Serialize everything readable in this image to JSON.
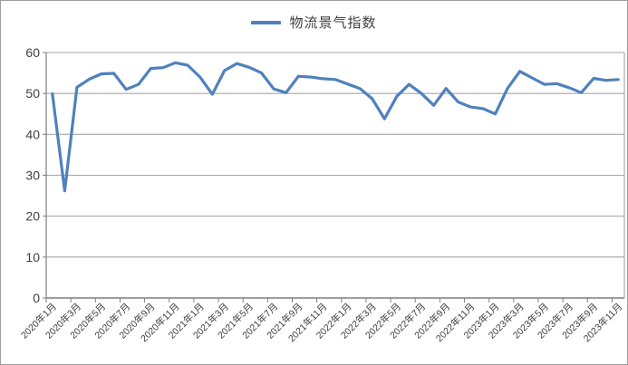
{
  "colors": {
    "line": "#4f81bd",
    "grid": "#a6a6a6",
    "axis": "#7f7f7f",
    "text": "#3f3f3f",
    "plot_border": "#a6a6a6",
    "background": "#ffffff"
  },
  "chart_data": {
    "type": "line",
    "title": "物流景气指数",
    "legend": {
      "label": "物流景气指数",
      "position": "top"
    },
    "grid": true,
    "ylim": [
      0,
      60
    ],
    "y_ticks": [
      0,
      10,
      20,
      30,
      40,
      50,
      60
    ],
    "x_label_interval": 2,
    "x_tick_labels": [
      "2020年1月",
      "2020年3月",
      "2020年5月",
      "2020年7月",
      "2020年9月",
      "2020年11月",
      "2021年1月",
      "2021年3月",
      "2021年5月",
      "2021年7月",
      "2021年9月",
      "2021年11月",
      "2022年1月",
      "2022年3月",
      "2022年5月",
      "2022年7月",
      "2022年9月",
      "2022年11月",
      "2023年1月",
      "2023年3月",
      "2023年5月",
      "2023年7月",
      "2023年9月",
      "2023年11月"
    ],
    "series": [
      {
        "name": "物流景气指数",
        "color": "#4f81bd",
        "values": [
          49.9,
          26.2,
          51.5,
          53.5,
          54.8,
          54.9,
          51.0,
          52.2,
          56.1,
          56.3,
          57.5,
          56.9,
          54.0,
          49.8,
          55.6,
          57.3,
          56.4,
          55.0,
          51.1,
          50.2,
          54.2,
          54.0,
          53.6,
          53.4,
          52.3,
          51.2,
          48.7,
          43.8,
          49.3,
          52.2,
          50.0,
          47.1,
          51.2,
          47.9,
          46.7,
          46.3,
          45.0,
          51.2,
          55.4,
          53.8,
          52.2,
          52.4,
          51.4,
          50.2,
          53.7,
          53.2,
          53.4
        ]
      }
    ]
  }
}
